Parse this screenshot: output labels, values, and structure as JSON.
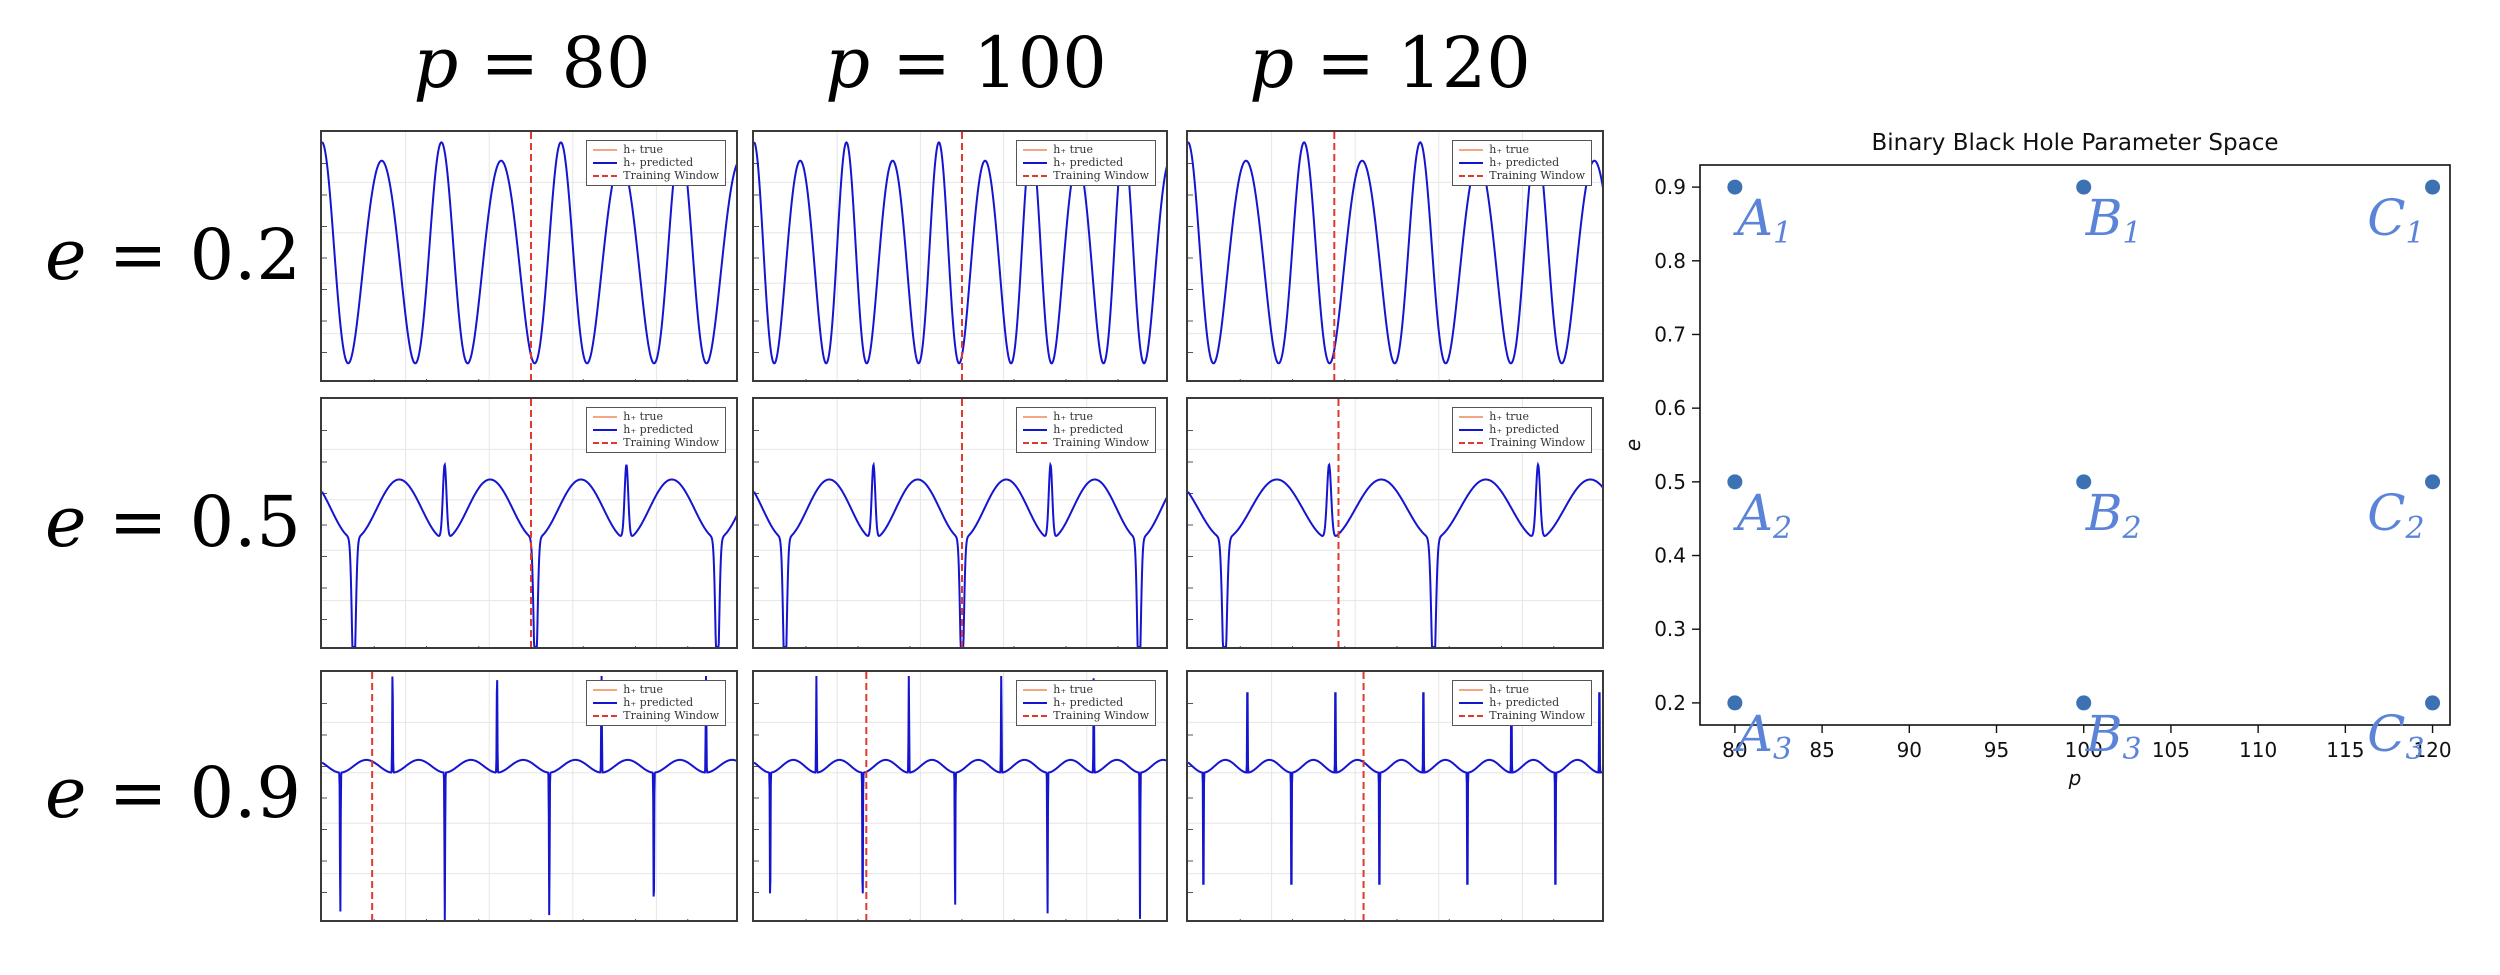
{
  "grid": {
    "columns": [
      {
        "var": "p",
        "eq": "=",
        "value": "80"
      },
      {
        "var": "p",
        "eq": "=",
        "value": "100"
      },
      {
        "var": "p",
        "eq": "=",
        "value": "120"
      }
    ],
    "rows": [
      {
        "var": "e",
        "eq": "=",
        "value": "0.2"
      },
      {
        "var": "e",
        "eq": "=",
        "value": "0.5"
      },
      {
        "var": "e",
        "eq": "=",
        "value": "0.9"
      }
    ]
  },
  "legend": {
    "true_label": "h₊ true",
    "pred_label": "h₊ predicted",
    "train_label": "Training Window"
  },
  "colors": {
    "predicted": "#1515d0",
    "true": "#f4a582",
    "training_window": "#e03a2e",
    "points": "#3c72b3",
    "point_labels": "#5b84d8"
  },
  "chart_data": [
    {
      "type": "line",
      "panels": [
        {
          "row": 0,
          "col": 0,
          "e": 0.2,
          "p": 80,
          "training_window_frac": 0.5
        },
        {
          "row": 0,
          "col": 1,
          "e": 0.2,
          "p": 100,
          "training_window_frac": 0.5
        },
        {
          "row": 0,
          "col": 2,
          "e": 0.2,
          "p": 120,
          "training_window_frac": 0.35
        },
        {
          "row": 1,
          "col": 0,
          "e": 0.5,
          "p": 80,
          "training_window_frac": 0.5
        },
        {
          "row": 1,
          "col": 1,
          "e": 0.5,
          "p": 100,
          "training_window_frac": 0.5
        },
        {
          "row": 1,
          "col": 2,
          "e": 0.5,
          "p": 120,
          "training_window_frac": 0.36
        },
        {
          "row": 2,
          "col": 0,
          "e": 0.9,
          "p": 80,
          "training_window_frac": 0.12
        },
        {
          "row": 2,
          "col": 1,
          "e": 0.9,
          "p": 100,
          "training_window_frac": 0.27
        },
        {
          "row": 2,
          "col": 2,
          "e": 0.9,
          "p": 120,
          "training_window_frac": 0.42
        }
      ]
    },
    {
      "type": "scatter",
      "title": "Binary Black Hole Parameter Space",
      "xlabel": "p",
      "ylabel": "e",
      "xlim": [
        78,
        121
      ],
      "ylim": [
        0.17,
        0.93
      ],
      "xticks": [
        80,
        85,
        90,
        95,
        100,
        105,
        110,
        115,
        120
      ],
      "yticks": [
        0.2,
        0.3,
        0.4,
        0.5,
        0.6,
        0.7,
        0.8,
        0.9
      ],
      "grid": false,
      "points": [
        {
          "letter": "A",
          "sub": "1",
          "x": 80,
          "y": 0.9
        },
        {
          "letter": "B",
          "sub": "1",
          "x": 100,
          "y": 0.9
        },
        {
          "letter": "C",
          "sub": "1",
          "x": 120,
          "y": 0.9
        },
        {
          "letter": "A",
          "sub": "2",
          "x": 80,
          "y": 0.5
        },
        {
          "letter": "B",
          "sub": "2",
          "x": 100,
          "y": 0.5
        },
        {
          "letter": "C",
          "sub": "2",
          "x": 120,
          "y": 0.5
        },
        {
          "letter": "A",
          "sub": "3",
          "x": 80,
          "y": 0.2
        },
        {
          "letter": "B",
          "sub": "3",
          "x": 100,
          "y": 0.2
        },
        {
          "letter": "C",
          "sub": "3",
          "x": 120,
          "y": 0.2
        }
      ]
    }
  ]
}
